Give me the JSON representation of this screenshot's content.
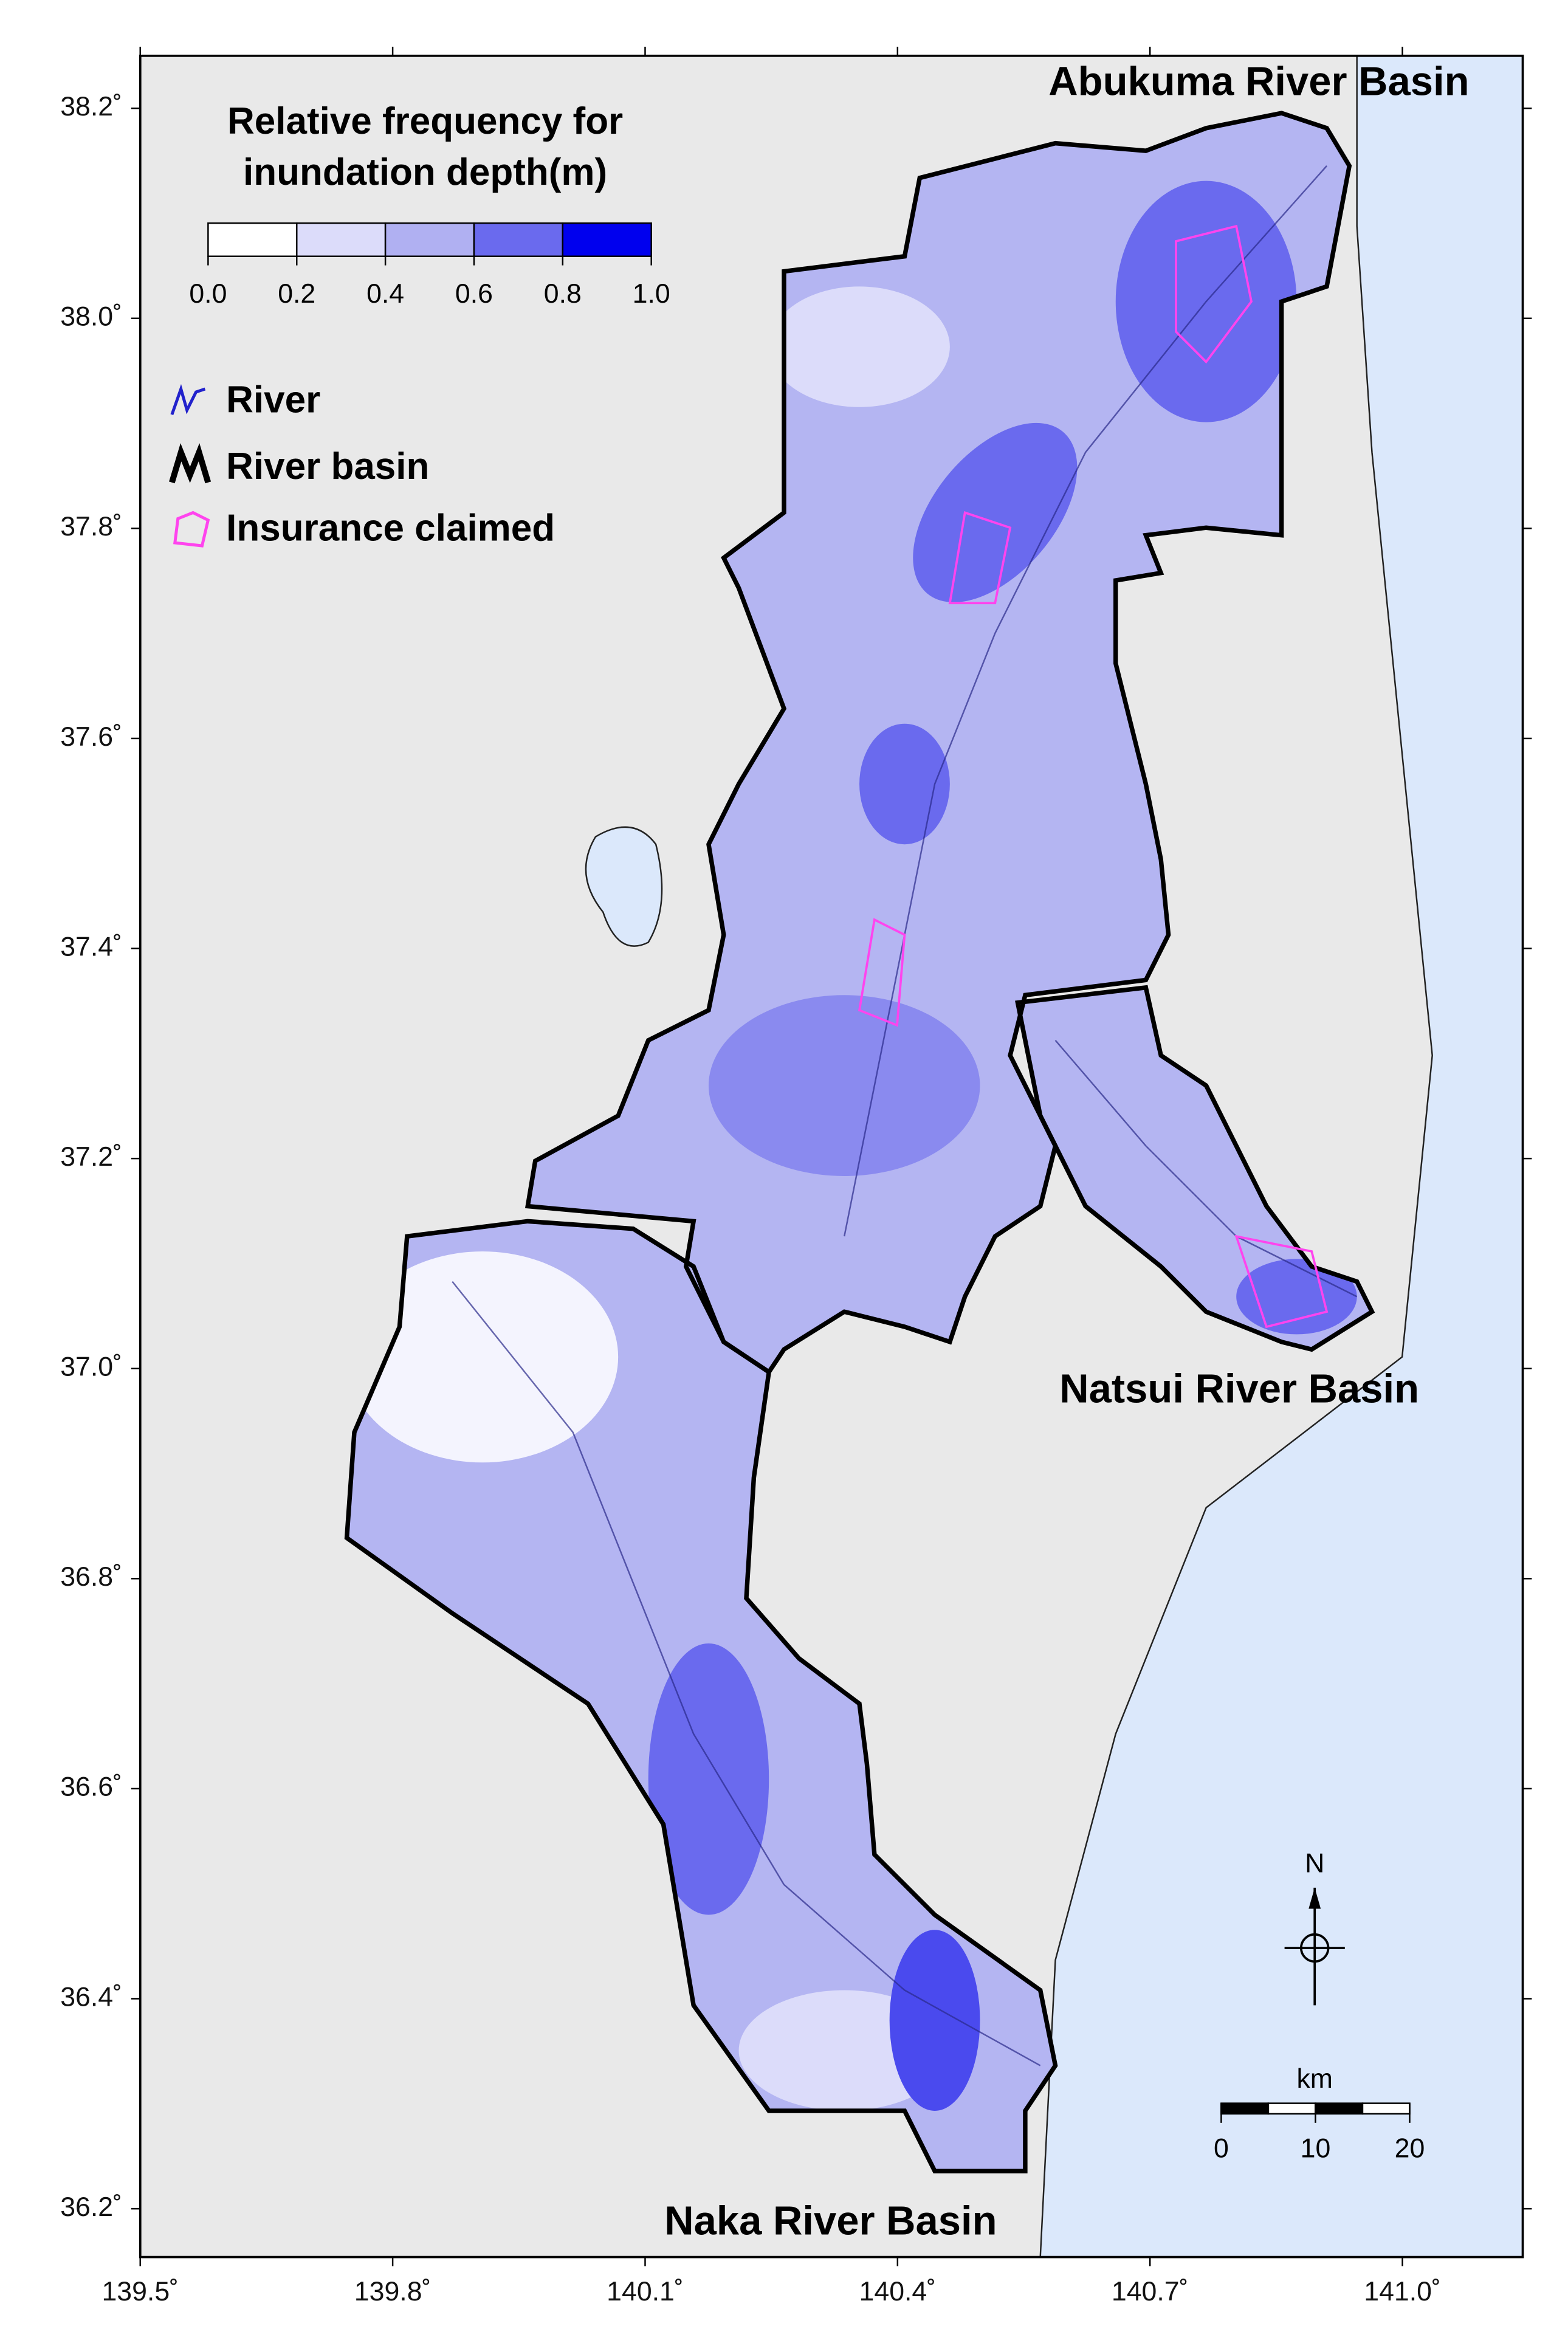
{
  "map": {
    "lon_lim": [
      139.5,
      141.143
    ],
    "lat_lim": [
      36.154,
      38.25
    ],
    "lat_ticks": [
      {
        "value": 38.2,
        "label": "38.2˚"
      },
      {
        "value": 38.0,
        "label": "38.0˚"
      },
      {
        "value": 37.8,
        "label": "37.8˚"
      },
      {
        "value": 37.6,
        "label": "37.6˚"
      },
      {
        "value": 37.4,
        "label": "37.4˚"
      },
      {
        "value": 37.2,
        "label": "37.2˚"
      },
      {
        "value": 37.0,
        "label": "37.0˚"
      },
      {
        "value": 36.8,
        "label": "36.8˚"
      },
      {
        "value": 36.6,
        "label": "36.6˚"
      },
      {
        "value": 36.4,
        "label": "36.4˚"
      },
      {
        "value": 36.2,
        "label": "36.2˚"
      }
    ],
    "lon_ticks": [
      {
        "value": 139.5,
        "label": "139.5˚"
      },
      {
        "value": 139.8,
        "label": "139.8˚"
      },
      {
        "value": 140.1,
        "label": "140.1˚"
      },
      {
        "value": 140.4,
        "label": "140.4˚"
      },
      {
        "value": 140.7,
        "label": "140.7˚"
      },
      {
        "value": 141.0,
        "label": "141.0˚"
      }
    ],
    "legend": {
      "title": [
        "Relative frequency for",
        "inundation depth(m)"
      ],
      "colors": [
        "#ffffff",
        "#dcdcfa",
        "#b0b0f2",
        "#6a6aee",
        "#0000ee"
      ],
      "ticks": [
        {
          "value": 0,
          "label": "0.0"
        },
        {
          "value": 0.2,
          "label": "0.2"
        },
        {
          "value": 0.4,
          "label": "0.4"
        },
        {
          "value": 0.6,
          "label": "0.6"
        },
        {
          "value": 0.8,
          "label": "0.8"
        },
        {
          "value": 1,
          "label": "1.0"
        }
      ],
      "items": [
        "River",
        "River basin",
        "Insurance claimed"
      ]
    },
    "basins": [
      "Abukuma River Basin",
      "Natsui River Basin",
      "Naka River Basin"
    ],
    "north": "N",
    "scale": {
      "unit": "km",
      "ticks": [
        0,
        10,
        20
      ]
    }
  }
}
